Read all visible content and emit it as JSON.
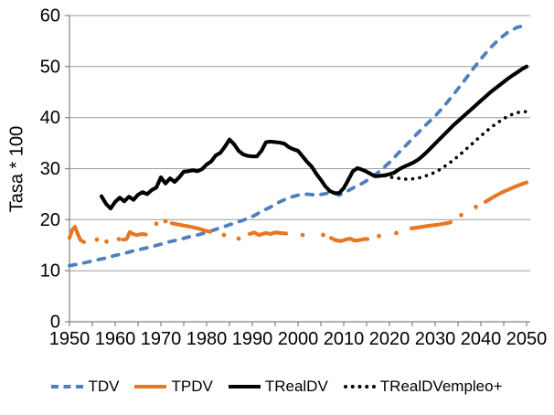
{
  "chart_data": {
    "type": "line",
    "title": "",
    "xlabel": "",
    "ylabel": "Tasa * 100",
    "xlim": [
      1950,
      2050
    ],
    "ylim": [
      0,
      60
    ],
    "x_ticks": [
      1950,
      1960,
      1970,
      1980,
      1990,
      2000,
      2010,
      2020,
      2030,
      2040,
      2050
    ],
    "x_minor_tick_step": 5,
    "y_ticks": [
      0,
      10,
      20,
      30,
      40,
      50,
      60
    ],
    "grid": "horizontal",
    "legend_position": "bottom",
    "colors": {
      "axis": "#808080",
      "gridline": "#9B9B9B",
      "text": "#000000"
    },
    "series": [
      {
        "name": "TDV",
        "color": "#4E80BD",
        "style": "dashed",
        "points": [
          [
            1950,
            11.0
          ],
          [
            1952,
            11.3
          ],
          [
            1954,
            11.7
          ],
          [
            1956,
            12.1
          ],
          [
            1958,
            12.5
          ],
          [
            1960,
            13.0
          ],
          [
            1962,
            13.4
          ],
          [
            1964,
            13.9
          ],
          [
            1966,
            14.3
          ],
          [
            1968,
            14.7
          ],
          [
            1970,
            15.2
          ],
          [
            1972,
            15.7
          ],
          [
            1974,
            16.1
          ],
          [
            1976,
            16.6
          ],
          [
            1978,
            17.0
          ],
          [
            1980,
            17.5
          ],
          [
            1982,
            18.1
          ],
          [
            1984,
            18.7
          ],
          [
            1986,
            19.3
          ],
          [
            1988,
            19.9
          ],
          [
            1990,
            20.6
          ],
          [
            1992,
            21.6
          ],
          [
            1994,
            22.5
          ],
          [
            1996,
            23.5
          ],
          [
            1998,
            24.3
          ],
          [
            2000,
            24.8
          ],
          [
            2002,
            25.0
          ],
          [
            2004,
            24.8
          ],
          [
            2006,
            25.1
          ],
          [
            2007,
            25.4
          ],
          [
            2008,
            25.2
          ],
          [
            2009,
            24.8
          ],
          [
            2010,
            25.2
          ],
          [
            2012,
            26.2
          ],
          [
            2014,
            27.1
          ],
          [
            2016,
            28.2
          ],
          [
            2018,
            29.6
          ],
          [
            2020,
            31.2
          ],
          [
            2022,
            33.1
          ],
          [
            2024,
            34.9
          ],
          [
            2026,
            36.8
          ],
          [
            2028,
            38.6
          ],
          [
            2030,
            40.3
          ],
          [
            2032,
            42.3
          ],
          [
            2034,
            44.5
          ],
          [
            2036,
            46.8
          ],
          [
            2038,
            49.2
          ],
          [
            2040,
            51.5
          ],
          [
            2042,
            53.6
          ],
          [
            2044,
            55.4
          ],
          [
            2046,
            56.8
          ],
          [
            2048,
            57.7
          ],
          [
            2050,
            58.1
          ]
        ]
      },
      {
        "name": "TPDV",
        "color": "#E87722",
        "style": "solid",
        "segments": [
          [
            [
              1950,
              16.4
            ],
            [
              1950.6,
              18.0
            ],
            [
              1951.2,
              18.6
            ],
            [
              1951.8,
              17.2
            ],
            [
              1952.4,
              16.0
            ],
            [
              1953.2,
              15.6
            ]
          ],
          [
            [
              1961.7,
              16.1
            ],
            [
              1962.5,
              16.2
            ],
            [
              1963.2,
              17.6
            ],
            [
              1963.9,
              17.2
            ],
            [
              1964.8,
              17.0
            ],
            [
              1965.8,
              17.2
            ],
            [
              1966.7,
              17.1
            ]
          ],
          [
            [
              1972.4,
              19.3
            ],
            [
              1974,
              19.0
            ],
            [
              1976,
              18.7
            ],
            [
              1978,
              18.3
            ],
            [
              1980,
              17.8
            ],
            [
              1980.8,
              17.6
            ]
          ],
          [
            [
              1989.4,
              17.2
            ],
            [
              1990.4,
              17.5
            ],
            [
              1991.4,
              17.0
            ],
            [
              1992.2,
              17.2
            ],
            [
              1993,
              17.4
            ],
            [
              1994,
              17.2
            ],
            [
              1995,
              17.5
            ],
            [
              1996.2,
              17.4
            ],
            [
              1997.4,
              17.3
            ]
          ],
          [
            [
              2007.2,
              16.4
            ],
            [
              2008.2,
              16.0
            ],
            [
              2009.4,
              15.8
            ],
            [
              2010.4,
              16.1
            ],
            [
              2011.4,
              16.3
            ],
            [
              2012.4,
              15.9
            ],
            [
              2013.4,
              16.0
            ],
            [
              2014.4,
              16.2
            ],
            [
              2015.2,
              16.2
            ]
          ],
          [
            [
              2024.8,
              18.3
            ],
            [
              2026.5,
              18.5
            ],
            [
              2028.5,
              18.8
            ],
            [
              2030.5,
              19.0
            ],
            [
              2032.5,
              19.3
            ],
            [
              2033.4,
              19.5
            ]
          ],
          [
            [
              2041,
              23.5
            ],
            [
              2043,
              24.6
            ],
            [
              2045,
              25.5
            ],
            [
              2047,
              26.3
            ],
            [
              2049,
              27.0
            ],
            [
              2050,
              27.3
            ]
          ]
        ],
        "dots": [
          [
            1956,
            16.1
          ],
          [
            1958.1,
            15.7
          ],
          [
            1960.8,
            16.2
          ],
          [
            1969,
            19.2
          ],
          [
            1971,
            19.7
          ],
          [
            1983.8,
            17.0
          ],
          [
            1987,
            16.3
          ],
          [
            2001,
            17.0
          ],
          [
            2005.5,
            17.0
          ],
          [
            2017.7,
            16.8
          ],
          [
            2021.5,
            17.4
          ],
          [
            2035.7,
            20.9
          ],
          [
            2038.9,
            22.5
          ]
        ]
      },
      {
        "name": "TRealDV",
        "color": "#000000",
        "style": "solid",
        "points": [
          [
            1957,
            24.6
          ],
          [
            1958,
            23.1
          ],
          [
            1959,
            22.2
          ],
          [
            1960,
            23.5
          ],
          [
            1961,
            24.3
          ],
          [
            1962,
            23.6
          ],
          [
            1963,
            24.5
          ],
          [
            1964,
            23.9
          ],
          [
            1965,
            24.9
          ],
          [
            1966,
            25.4
          ],
          [
            1967,
            25.0
          ],
          [
            1968,
            25.8
          ],
          [
            1969,
            26.3
          ],
          [
            1970,
            28.3
          ],
          [
            1971,
            27.1
          ],
          [
            1972,
            28.1
          ],
          [
            1973,
            27.4
          ],
          [
            1974,
            28.3
          ],
          [
            1975,
            29.4
          ],
          [
            1976,
            29.5
          ],
          [
            1977,
            29.7
          ],
          [
            1978,
            29.5
          ],
          [
            1979,
            29.9
          ],
          [
            1980,
            30.8
          ],
          [
            1981,
            31.4
          ],
          [
            1982,
            32.6
          ],
          [
            1983,
            33.1
          ],
          [
            1984,
            34.3
          ],
          [
            1985,
            35.7
          ],
          [
            1986,
            34.8
          ],
          [
            1987,
            33.5
          ],
          [
            1988,
            32.8
          ],
          [
            1989,
            32.5
          ],
          [
            1990,
            32.4
          ],
          [
            1991,
            32.4
          ],
          [
            1992,
            33.5
          ],
          [
            1993,
            35.2
          ],
          [
            1994,
            35.3
          ],
          [
            1995,
            35.2
          ],
          [
            1996,
            35.1
          ],
          [
            1997,
            34.9
          ],
          [
            1998,
            34.2
          ],
          [
            1999,
            33.8
          ],
          [
            2000,
            33.5
          ],
          [
            2001,
            32.4
          ],
          [
            2002,
            31.3
          ],
          [
            2003,
            30.4
          ],
          [
            2004,
            29.0
          ],
          [
            2005,
            27.8
          ],
          [
            2006,
            26.5
          ],
          [
            2007,
            25.6
          ],
          [
            2008,
            25.2
          ],
          [
            2009,
            25.2
          ],
          [
            2010,
            26.2
          ],
          [
            2011,
            27.8
          ],
          [
            2012,
            29.5
          ],
          [
            2013,
            30.1
          ],
          [
            2014,
            29.8
          ],
          [
            2015,
            29.4
          ],
          [
            2016,
            28.9
          ],
          [
            2017,
            28.5
          ],
          [
            2018,
            28.6
          ],
          [
            2019,
            28.7
          ],
          [
            2020,
            28.9
          ],
          [
            2021,
            29.2
          ],
          [
            2022,
            29.8
          ],
          [
            2023,
            30.3
          ],
          [
            2024,
            30.7
          ],
          [
            2025,
            31.1
          ],
          [
            2026,
            31.6
          ],
          [
            2027,
            32.3
          ],
          [
            2028,
            33.1
          ],
          [
            2029,
            34.0
          ],
          [
            2030,
            34.9
          ],
          [
            2031,
            35.8
          ],
          [
            2032,
            36.7
          ],
          [
            2033,
            37.6
          ],
          [
            2034,
            38.5
          ],
          [
            2035,
            39.3
          ],
          [
            2036,
            40.1
          ],
          [
            2037,
            40.9
          ],
          [
            2038,
            41.7
          ],
          [
            2039,
            42.5
          ],
          [
            2040,
            43.3
          ],
          [
            2041,
            44.1
          ],
          [
            2042,
            44.9
          ],
          [
            2043,
            45.6
          ],
          [
            2044,
            46.3
          ],
          [
            2045,
            47.0
          ],
          [
            2046,
            47.7
          ],
          [
            2047,
            48.3
          ],
          [
            2048,
            48.9
          ],
          [
            2049,
            49.5
          ],
          [
            2050,
            50.0
          ]
        ]
      },
      {
        "name": "TRealDVempleo+",
        "color": "#000000",
        "style": "dotted",
        "points": [
          [
            2019,
            28.6
          ],
          [
            2020,
            28.4
          ],
          [
            2021,
            28.2
          ],
          [
            2022,
            28.1
          ],
          [
            2023,
            28.0
          ],
          [
            2024,
            27.9
          ],
          [
            2025,
            28.0
          ],
          [
            2026,
            28.1
          ],
          [
            2027,
            28.3
          ],
          [
            2028,
            28.6
          ],
          [
            2029,
            28.9
          ],
          [
            2030,
            29.3
          ],
          [
            2031,
            29.8
          ],
          [
            2032,
            30.4
          ],
          [
            2033,
            31.0
          ],
          [
            2034,
            31.7
          ],
          [
            2035,
            32.4
          ],
          [
            2036,
            33.2
          ],
          [
            2037,
            34.0
          ],
          [
            2038,
            34.8
          ],
          [
            2039,
            35.6
          ],
          [
            2040,
            36.4
          ],
          [
            2041,
            37.2
          ],
          [
            2042,
            37.9
          ],
          [
            2043,
            38.6
          ],
          [
            2044,
            39.2
          ],
          [
            2045,
            39.8
          ],
          [
            2046,
            40.3
          ],
          [
            2047,
            40.7
          ],
          [
            2048,
            41.0
          ],
          [
            2049,
            41.1
          ],
          [
            2050,
            41.2
          ]
        ]
      }
    ]
  }
}
